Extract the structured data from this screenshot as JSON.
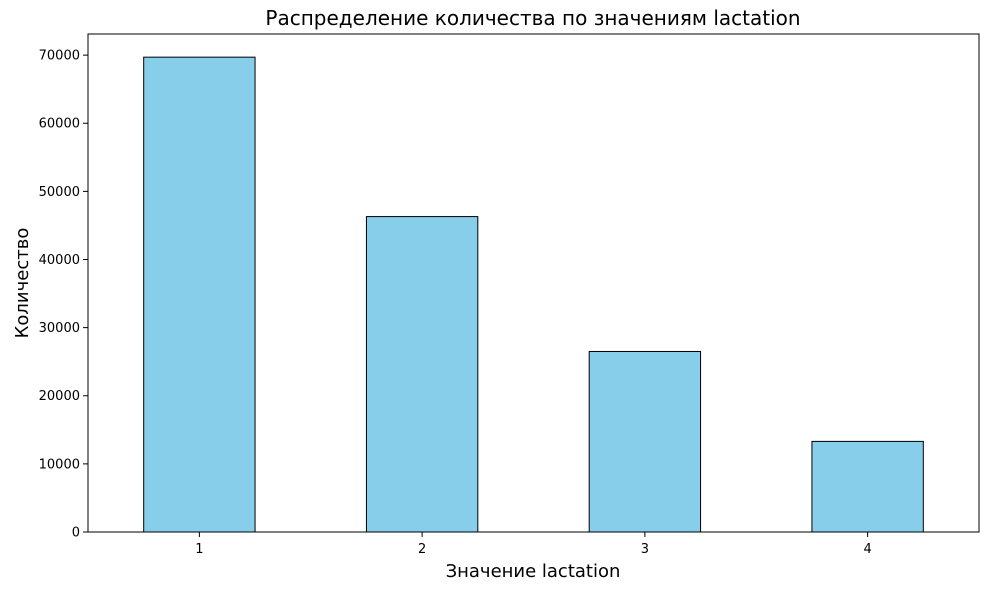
{
  "chart_data": {
    "type": "bar",
    "title": "Распределение количества по значениям lactation",
    "xlabel": "Значение lactation",
    "ylabel": "Количество",
    "categories": [
      "1",
      "2",
      "3",
      "4"
    ],
    "values": [
      69700,
      46300,
      26500,
      13300
    ],
    "ylim": [
      0,
      73100
    ],
    "yticks": [
      0,
      10000,
      20000,
      30000,
      40000,
      50000,
      60000,
      70000
    ],
    "grid": false,
    "colors": {
      "bar_fill": "#87ceeb",
      "bar_edge": "#000000",
      "axis": "#000000",
      "background": "#ffffff"
    }
  }
}
